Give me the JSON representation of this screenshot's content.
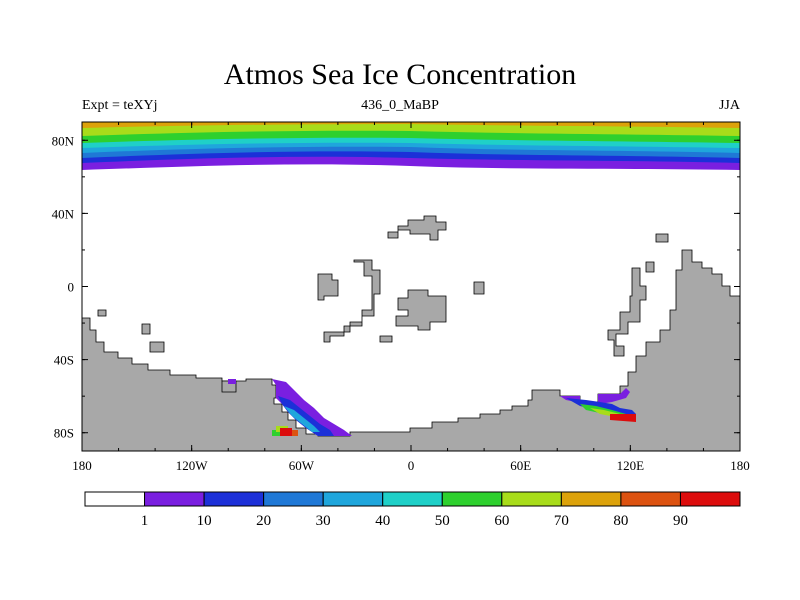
{
  "title": "Atmos Sea Ice Concentration",
  "left_string": "Expt = teXYj",
  "center_string": "436_0_MaBP",
  "right_string": "JJA",
  "map": {
    "projection": "cylindrical-equidistant",
    "lon_range": [
      -180,
      180
    ],
    "lat_range": [
      -90,
      90
    ],
    "land_color": "#a8a8a8",
    "ocean_color": "#ffffff"
  },
  "x_ticks": [
    "180",
    "120W",
    "60W",
    "0",
    "60E",
    "120E",
    "180"
  ],
  "y_ticks": [
    "80N",
    "40N",
    "0",
    "40S",
    "80S"
  ],
  "colorbar": {
    "colors": [
      "#ffffff",
      "#7a1fe0",
      "#1c30d8",
      "#1f78d6",
      "#1fa6dc",
      "#1fd0c8",
      "#2ed02e",
      "#a8dc1a",
      "#dca20a",
      "#dc5210",
      "#dc0c0c"
    ],
    "labels": [
      "1",
      "10",
      "20",
      "30",
      "40",
      "50",
      "60",
      "70",
      "80",
      "90"
    ]
  }
}
